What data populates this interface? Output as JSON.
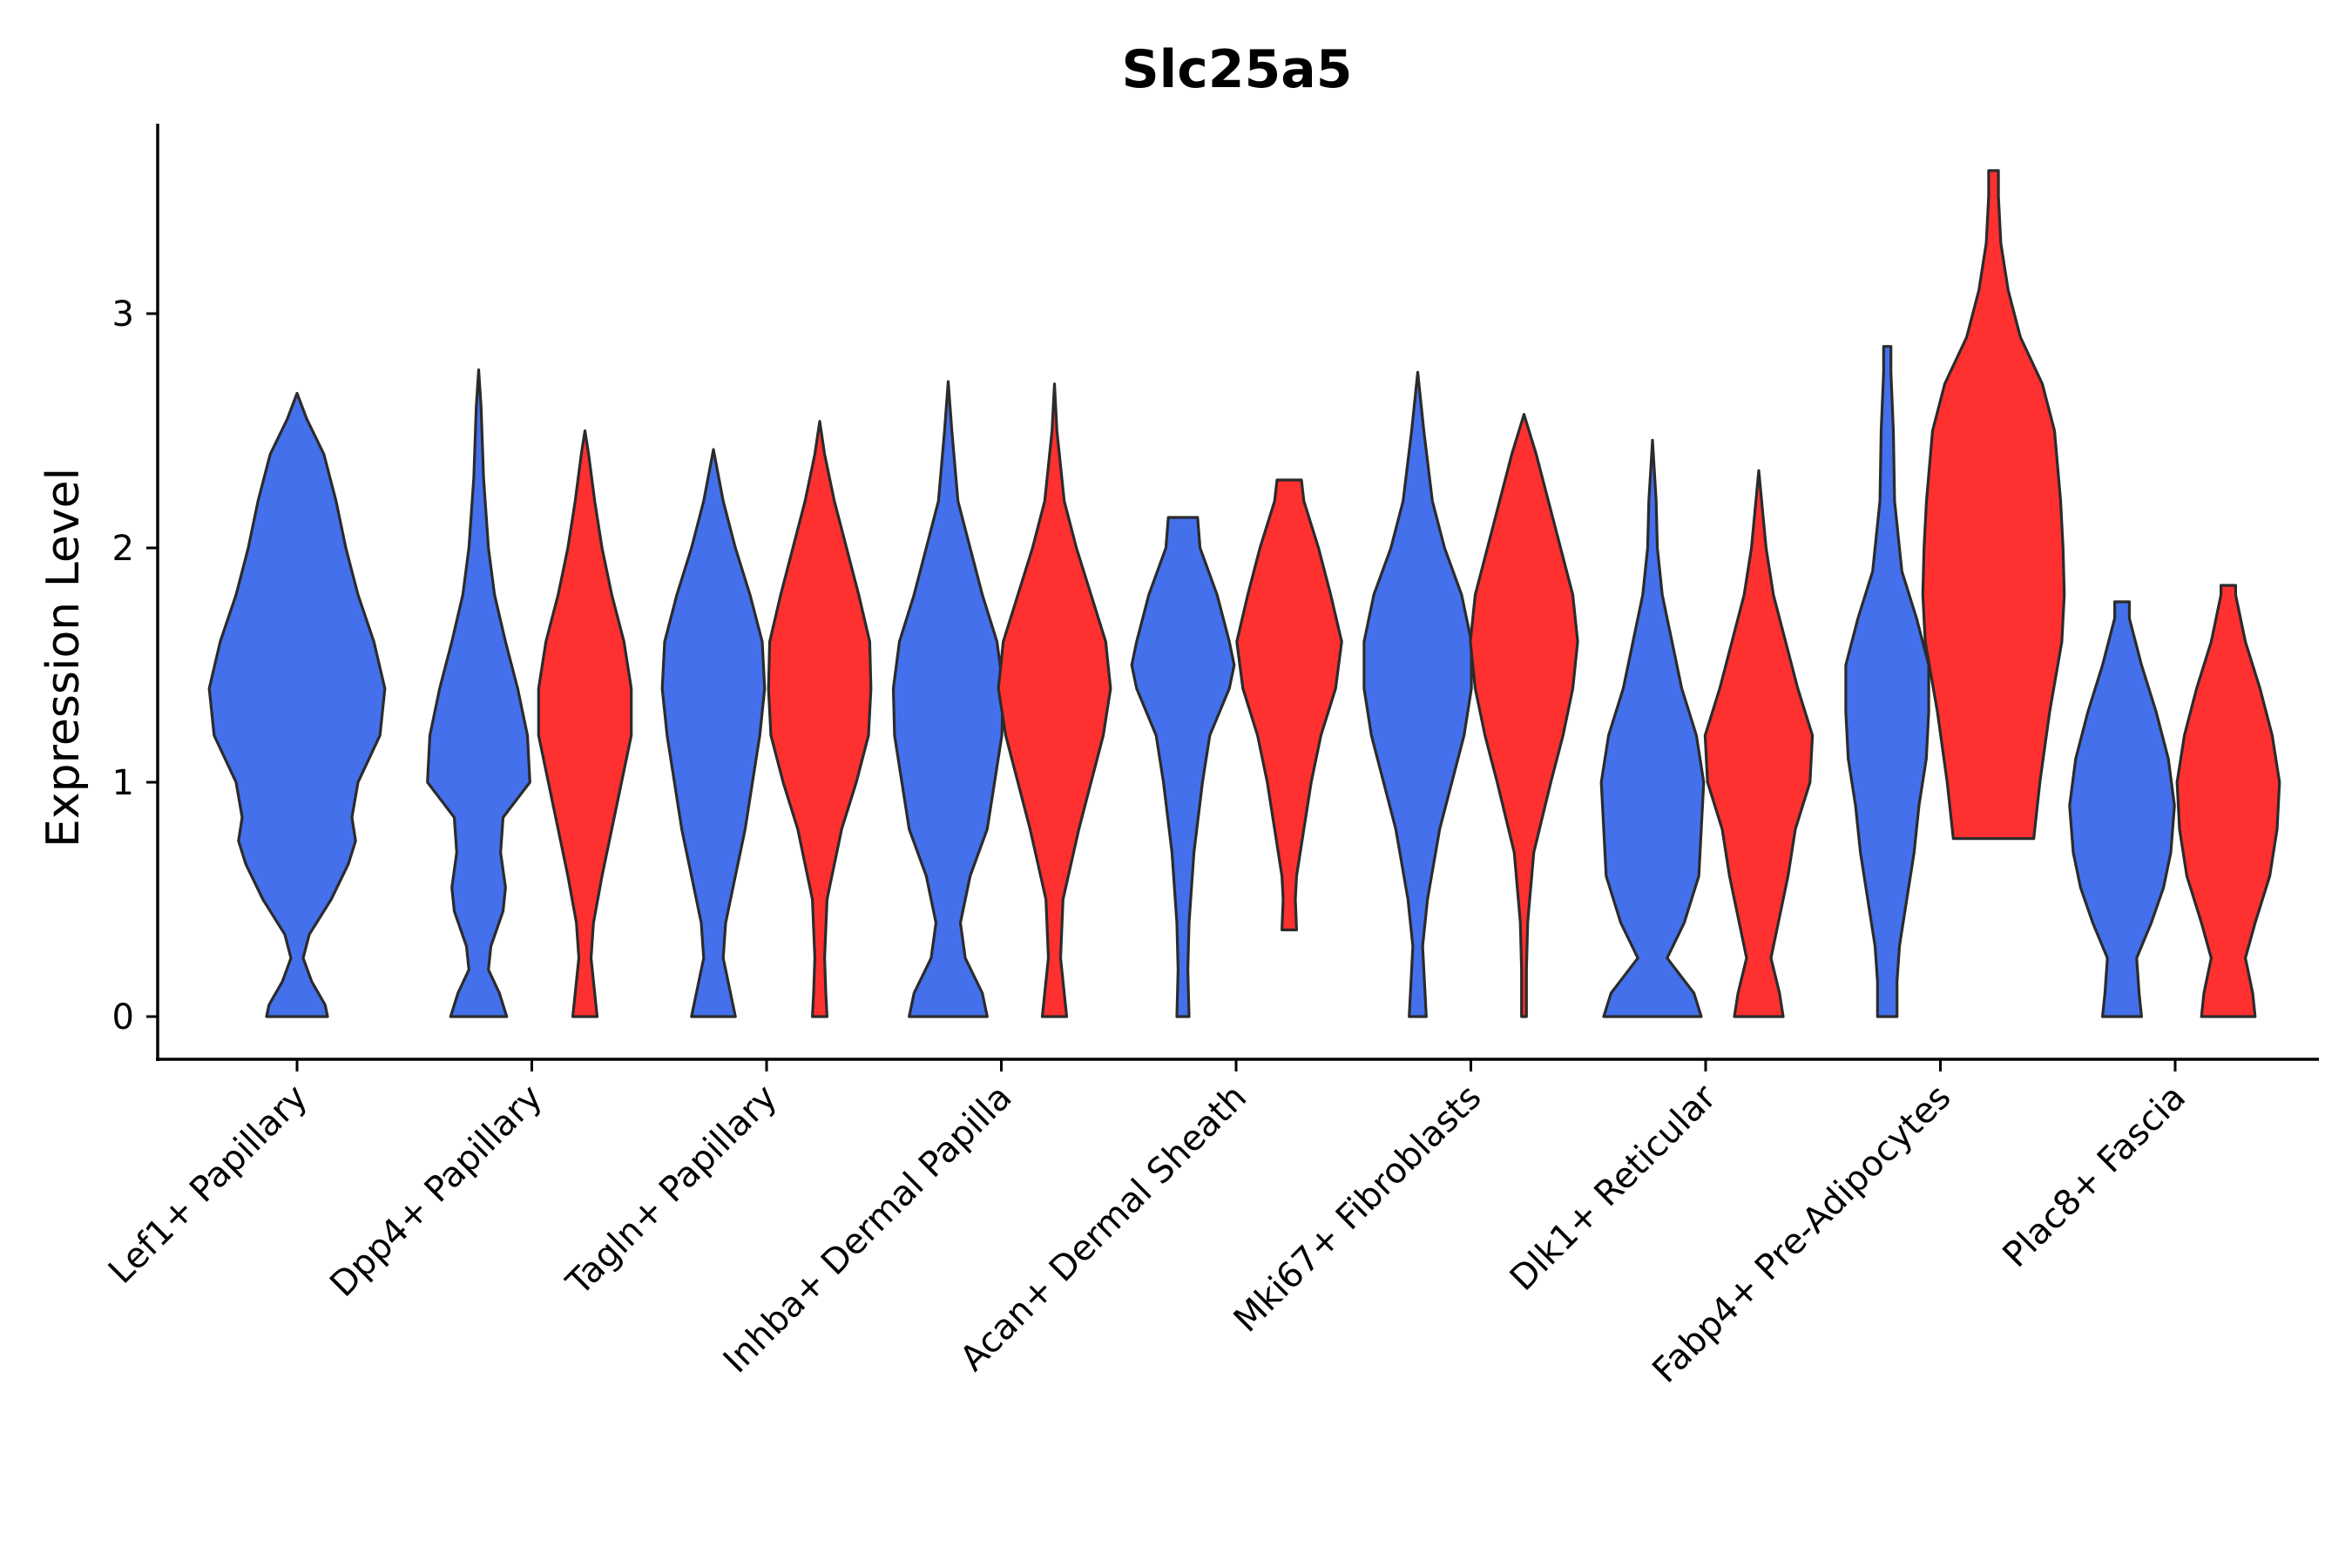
{
  "chart_data": {
    "type": "violin",
    "title": "Slc25a5",
    "xlabel": "",
    "ylabel": "Expression Level",
    "ylim": [
      -0.18,
      3.8
    ],
    "yticks": [
      "0",
      "1",
      "2",
      "3"
    ],
    "grid": false,
    "legend": "none",
    "colors": {
      "blue": "#4470EC",
      "red": "#FF3030"
    },
    "categories": [
      "Lef1+ Papillary",
      "Dpp4+ Papillary",
      "Tagln+ Papillary",
      "Inhba+ Dermal Papilla",
      "Acan+ Dermal Sheath",
      "Mki67+ Fibroblasts",
      "Dlk1+ Reticular",
      "Fabp4+ Pre-Adipocytes",
      "Plac8+ Fascia"
    ],
    "violins": [
      {
        "category": "Lef1+ Papillary",
        "group": "blue",
        "min": 0,
        "max": 2.66,
        "profile": [
          [
            0,
            0.25
          ],
          [
            0.05,
            0.23
          ],
          [
            0.15,
            0.12
          ],
          [
            0.25,
            0.05
          ],
          [
            0.35,
            0.1
          ],
          [
            0.5,
            0.28
          ],
          [
            0.65,
            0.42
          ],
          [
            0.75,
            0.48
          ],
          [
            0.85,
            0.45
          ],
          [
            1.0,
            0.5
          ],
          [
            1.2,
            0.68
          ],
          [
            1.4,
            0.72
          ],
          [
            1.6,
            0.63
          ],
          [
            1.8,
            0.5
          ],
          [
            2.0,
            0.4
          ],
          [
            2.2,
            0.32
          ],
          [
            2.4,
            0.22
          ],
          [
            2.55,
            0.08
          ],
          [
            2.66,
            0
          ]
        ]
      },
      {
        "category": "Dpp4+ Papillary",
        "group": "blue",
        "min": 0,
        "max": 2.76,
        "profile": [
          [
            0,
            0.23
          ],
          [
            0.1,
            0.17
          ],
          [
            0.2,
            0.08
          ],
          [
            0.3,
            0.1
          ],
          [
            0.45,
            0.2
          ],
          [
            0.55,
            0.22
          ],
          [
            0.7,
            0.18
          ],
          [
            0.85,
            0.2
          ],
          [
            1.0,
            0.42
          ],
          [
            1.2,
            0.4
          ],
          [
            1.4,
            0.32
          ],
          [
            1.6,
            0.22
          ],
          [
            1.8,
            0.13
          ],
          [
            2.0,
            0.08
          ],
          [
            2.3,
            0.04
          ],
          [
            2.6,
            0.02
          ],
          [
            2.76,
            0
          ]
        ]
      },
      {
        "category": "Dpp4+ Papillary",
        "group": "red",
        "min": 0,
        "max": 2.5,
        "profile": [
          [
            0,
            0.1
          ],
          [
            0.1,
            0.08
          ],
          [
            0.25,
            0.05
          ],
          [
            0.4,
            0.07
          ],
          [
            0.6,
            0.14
          ],
          [
            0.8,
            0.22
          ],
          [
            1.0,
            0.3
          ],
          [
            1.2,
            0.38
          ],
          [
            1.4,
            0.38
          ],
          [
            1.6,
            0.32
          ],
          [
            1.8,
            0.22
          ],
          [
            2.0,
            0.14
          ],
          [
            2.2,
            0.08
          ],
          [
            2.4,
            0.03
          ],
          [
            2.5,
            0
          ]
        ]
      },
      {
        "category": "Tagln+ Papillary",
        "group": "blue",
        "min": 0,
        "max": 2.42,
        "profile": [
          [
            0,
            0.18
          ],
          [
            0.1,
            0.14
          ],
          [
            0.25,
            0.08
          ],
          [
            0.4,
            0.1
          ],
          [
            0.6,
            0.18
          ],
          [
            0.8,
            0.26
          ],
          [
            1.0,
            0.32
          ],
          [
            1.2,
            0.38
          ],
          [
            1.4,
            0.42
          ],
          [
            1.6,
            0.4
          ],
          [
            1.8,
            0.3
          ],
          [
            2.0,
            0.18
          ],
          [
            2.2,
            0.08
          ],
          [
            2.42,
            0
          ]
        ]
      },
      {
        "category": "Tagln+ Papillary",
        "group": "red",
        "min": 0,
        "max": 2.54,
        "profile": [
          [
            0,
            0.06
          ],
          [
            0.1,
            0.05
          ],
          [
            0.25,
            0.04
          ],
          [
            0.5,
            0.06
          ],
          [
            0.8,
            0.18
          ],
          [
            1.0,
            0.3
          ],
          [
            1.2,
            0.4
          ],
          [
            1.4,
            0.42
          ],
          [
            1.6,
            0.41
          ],
          [
            1.8,
            0.32
          ],
          [
            2.0,
            0.22
          ],
          [
            2.2,
            0.12
          ],
          [
            2.4,
            0.04
          ],
          [
            2.54,
            0
          ]
        ]
      },
      {
        "category": "Inhba+ Dermal Papilla",
        "group": "blue",
        "min": 0,
        "max": 2.71,
        "profile": [
          [
            0,
            0.32
          ],
          [
            0.1,
            0.28
          ],
          [
            0.25,
            0.14
          ],
          [
            0.4,
            0.1
          ],
          [
            0.6,
            0.18
          ],
          [
            0.8,
            0.32
          ],
          [
            1.0,
            0.38
          ],
          [
            1.2,
            0.44
          ],
          [
            1.4,
            0.45
          ],
          [
            1.6,
            0.4
          ],
          [
            1.8,
            0.28
          ],
          [
            2.0,
            0.18
          ],
          [
            2.2,
            0.08
          ],
          [
            2.5,
            0.03
          ],
          [
            2.71,
            0
          ]
        ]
      },
      {
        "category": "Inhba+ Dermal Papilla",
        "group": "red",
        "min": 0,
        "max": 2.7,
        "profile": [
          [
            0,
            0.1
          ],
          [
            0.1,
            0.08
          ],
          [
            0.25,
            0.05
          ],
          [
            0.5,
            0.07
          ],
          [
            0.8,
            0.2
          ],
          [
            1.0,
            0.3
          ],
          [
            1.2,
            0.4
          ],
          [
            1.4,
            0.46
          ],
          [
            1.6,
            0.42
          ],
          [
            1.8,
            0.3
          ],
          [
            2.0,
            0.18
          ],
          [
            2.2,
            0.08
          ],
          [
            2.5,
            0.02
          ],
          [
            2.7,
            0
          ]
        ]
      },
      {
        "category": "Acan+ Dermal Sheath",
        "group": "blue",
        "min": 0,
        "max": 2.13,
        "profile": [
          [
            0,
            0.05
          ],
          [
            0.2,
            0.04
          ],
          [
            0.4,
            0.05
          ],
          [
            0.7,
            0.09
          ],
          [
            1.0,
            0.16
          ],
          [
            1.2,
            0.22
          ],
          [
            1.4,
            0.38
          ],
          [
            1.5,
            0.42
          ],
          [
            1.6,
            0.38
          ],
          [
            1.8,
            0.28
          ],
          [
            2.0,
            0.14
          ],
          [
            2.13,
            0.12
          ]
        ]
      },
      {
        "category": "Acan+ Dermal Sheath",
        "group": "red",
        "min": 0.37,
        "max": 2.29,
        "profile": [
          [
            0.37,
            0.06
          ],
          [
            0.5,
            0.05
          ],
          [
            0.6,
            0.06
          ],
          [
            0.8,
            0.12
          ],
          [
            1.0,
            0.18
          ],
          [
            1.2,
            0.26
          ],
          [
            1.4,
            0.38
          ],
          [
            1.6,
            0.43
          ],
          [
            1.8,
            0.34
          ],
          [
            2.0,
            0.24
          ],
          [
            2.2,
            0.12
          ],
          [
            2.29,
            0.1
          ]
        ]
      },
      {
        "category": "Mki67+ Fibroblasts",
        "group": "blue",
        "min": 0,
        "max": 2.75,
        "profile": [
          [
            0,
            0.07
          ],
          [
            0.1,
            0.06
          ],
          [
            0.3,
            0.04
          ],
          [
            0.5,
            0.08
          ],
          [
            0.8,
            0.18
          ],
          [
            1.0,
            0.28
          ],
          [
            1.2,
            0.38
          ],
          [
            1.4,
            0.44
          ],
          [
            1.6,
            0.44
          ],
          [
            1.8,
            0.36
          ],
          [
            2.0,
            0.22
          ],
          [
            2.2,
            0.12
          ],
          [
            2.5,
            0.05
          ],
          [
            2.75,
            0
          ]
        ]
      },
      {
        "category": "Mki67+ Fibroblasts",
        "group": "red",
        "min": 0,
        "max": 2.57,
        "profile": [
          [
            0,
            0.02
          ],
          [
            0.2,
            0.02
          ],
          [
            0.4,
            0.03
          ],
          [
            0.7,
            0.08
          ],
          [
            1.0,
            0.22
          ],
          [
            1.2,
            0.32
          ],
          [
            1.4,
            0.4
          ],
          [
            1.6,
            0.44
          ],
          [
            1.8,
            0.4
          ],
          [
            2.0,
            0.3
          ],
          [
            2.2,
            0.2
          ],
          [
            2.4,
            0.1
          ],
          [
            2.57,
            0
          ]
        ]
      },
      {
        "category": "Dlk1+ Reticular",
        "group": "blue",
        "min": 0,
        "max": 2.46,
        "profile": [
          [
            0,
            0.4
          ],
          [
            0.1,
            0.34
          ],
          [
            0.25,
            0.12
          ],
          [
            0.4,
            0.26
          ],
          [
            0.6,
            0.38
          ],
          [
            0.8,
            0.4
          ],
          [
            1.0,
            0.42
          ],
          [
            1.2,
            0.36
          ],
          [
            1.4,
            0.24
          ],
          [
            1.6,
            0.16
          ],
          [
            1.8,
            0.08
          ],
          [
            2.0,
            0.04
          ],
          [
            2.2,
            0.03
          ],
          [
            2.46,
            0
          ]
        ]
      },
      {
        "category": "Dlk1+ Reticular",
        "group": "red",
        "min": 0,
        "max": 2.33,
        "profile": [
          [
            0,
            0.2
          ],
          [
            0.1,
            0.17
          ],
          [
            0.25,
            0.1
          ],
          [
            0.4,
            0.16
          ],
          [
            0.6,
            0.24
          ],
          [
            0.8,
            0.3
          ],
          [
            1.0,
            0.42
          ],
          [
            1.2,
            0.44
          ],
          [
            1.4,
            0.32
          ],
          [
            1.6,
            0.22
          ],
          [
            1.8,
            0.12
          ],
          [
            2.0,
            0.06
          ],
          [
            2.33,
            0
          ]
        ]
      },
      {
        "category": "Fabp4+ Pre-Adipocytes",
        "group": "blue",
        "min": 0,
        "max": 2.86,
        "profile": [
          [
            0,
            0.08
          ],
          [
            0.15,
            0.08
          ],
          [
            0.3,
            0.1
          ],
          [
            0.5,
            0.16
          ],
          [
            0.7,
            0.22
          ],
          [
            0.9,
            0.26
          ],
          [
            1.1,
            0.32
          ],
          [
            1.3,
            0.34
          ],
          [
            1.5,
            0.34
          ],
          [
            1.7,
            0.24
          ],
          [
            1.9,
            0.12
          ],
          [
            2.2,
            0.06
          ],
          [
            2.5,
            0.05
          ],
          [
            2.75,
            0.03
          ],
          [
            2.86,
            0.03
          ]
        ]
      },
      {
        "category": "Fabp4+ Pre-Adipocytes",
        "group": "red",
        "min": 0.76,
        "max": 3.61,
        "profile": [
          [
            0.76,
            0.33
          ],
          [
            1.0,
            0.38
          ],
          [
            1.3,
            0.46
          ],
          [
            1.6,
            0.56
          ],
          [
            1.8,
            0.58
          ],
          [
            2.0,
            0.57
          ],
          [
            2.2,
            0.55
          ],
          [
            2.5,
            0.5
          ],
          [
            2.7,
            0.4
          ],
          [
            2.9,
            0.22
          ],
          [
            3.1,
            0.12
          ],
          [
            3.3,
            0.06
          ],
          [
            3.5,
            0.04
          ],
          [
            3.61,
            0.04
          ]
        ]
      },
      {
        "category": "Plac8+ Fascia",
        "group": "blue",
        "min": 0,
        "max": 1.77,
        "profile": [
          [
            0,
            0.16
          ],
          [
            0.1,
            0.14
          ],
          [
            0.25,
            0.12
          ],
          [
            0.4,
            0.24
          ],
          [
            0.55,
            0.34
          ],
          [
            0.7,
            0.4
          ],
          [
            0.9,
            0.43
          ],
          [
            1.1,
            0.38
          ],
          [
            1.3,
            0.28
          ],
          [
            1.5,
            0.16
          ],
          [
            1.7,
            0.06
          ],
          [
            1.77,
            0.06
          ]
        ]
      },
      {
        "category": "Plac8+ Fascia",
        "group": "red",
        "min": 0,
        "max": 1.84,
        "profile": [
          [
            0,
            0.22
          ],
          [
            0.1,
            0.2
          ],
          [
            0.25,
            0.14
          ],
          [
            0.4,
            0.22
          ],
          [
            0.6,
            0.34
          ],
          [
            0.8,
            0.4
          ],
          [
            1.0,
            0.42
          ],
          [
            1.2,
            0.36
          ],
          [
            1.4,
            0.26
          ],
          [
            1.6,
            0.14
          ],
          [
            1.8,
            0.06
          ],
          [
            1.84,
            0.06
          ]
        ]
      }
    ]
  }
}
